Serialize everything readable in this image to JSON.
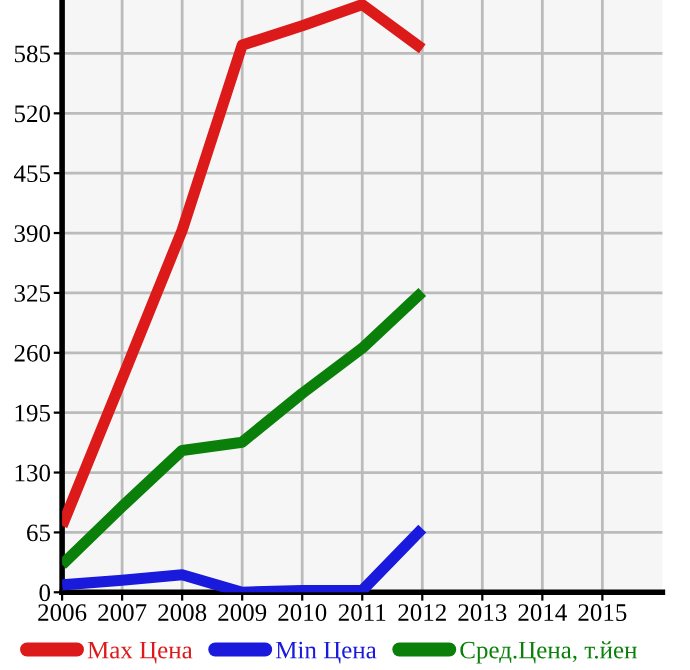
{
  "chart_data": {
    "type": "line",
    "x": [
      2006,
      2007,
      2008,
      2009,
      2010,
      2011,
      2012
    ],
    "series": [
      {
        "name": "Max Цена",
        "color": "#dd1a1a",
        "values": [
          72,
          232,
          393,
          594,
          615,
          638,
          590
        ]
      },
      {
        "name": "Min Цена",
        "color": "#1a1add",
        "values": [
          8,
          13,
          19,
          0,
          2,
          2,
          69
        ]
      },
      {
        "name": "Сред.Цена, т.йен",
        "color": "#0a800a",
        "values": [
          30,
          93,
          154,
          163,
          216,
          265,
          326
        ]
      }
    ],
    "xlim": [
      2006,
      2016
    ],
    "xticks": [
      2006,
      2007,
      2008,
      2009,
      2010,
      2011,
      2012,
      2013,
      2014,
      2015
    ],
    "ylim": [
      0,
      643
    ],
    "yticks": [
      0,
      65,
      130,
      195,
      260,
      325,
      390,
      455,
      520,
      585
    ],
    "grid": true,
    "legend": "bottom",
    "marker": "none",
    "line_style": "solid"
  }
}
